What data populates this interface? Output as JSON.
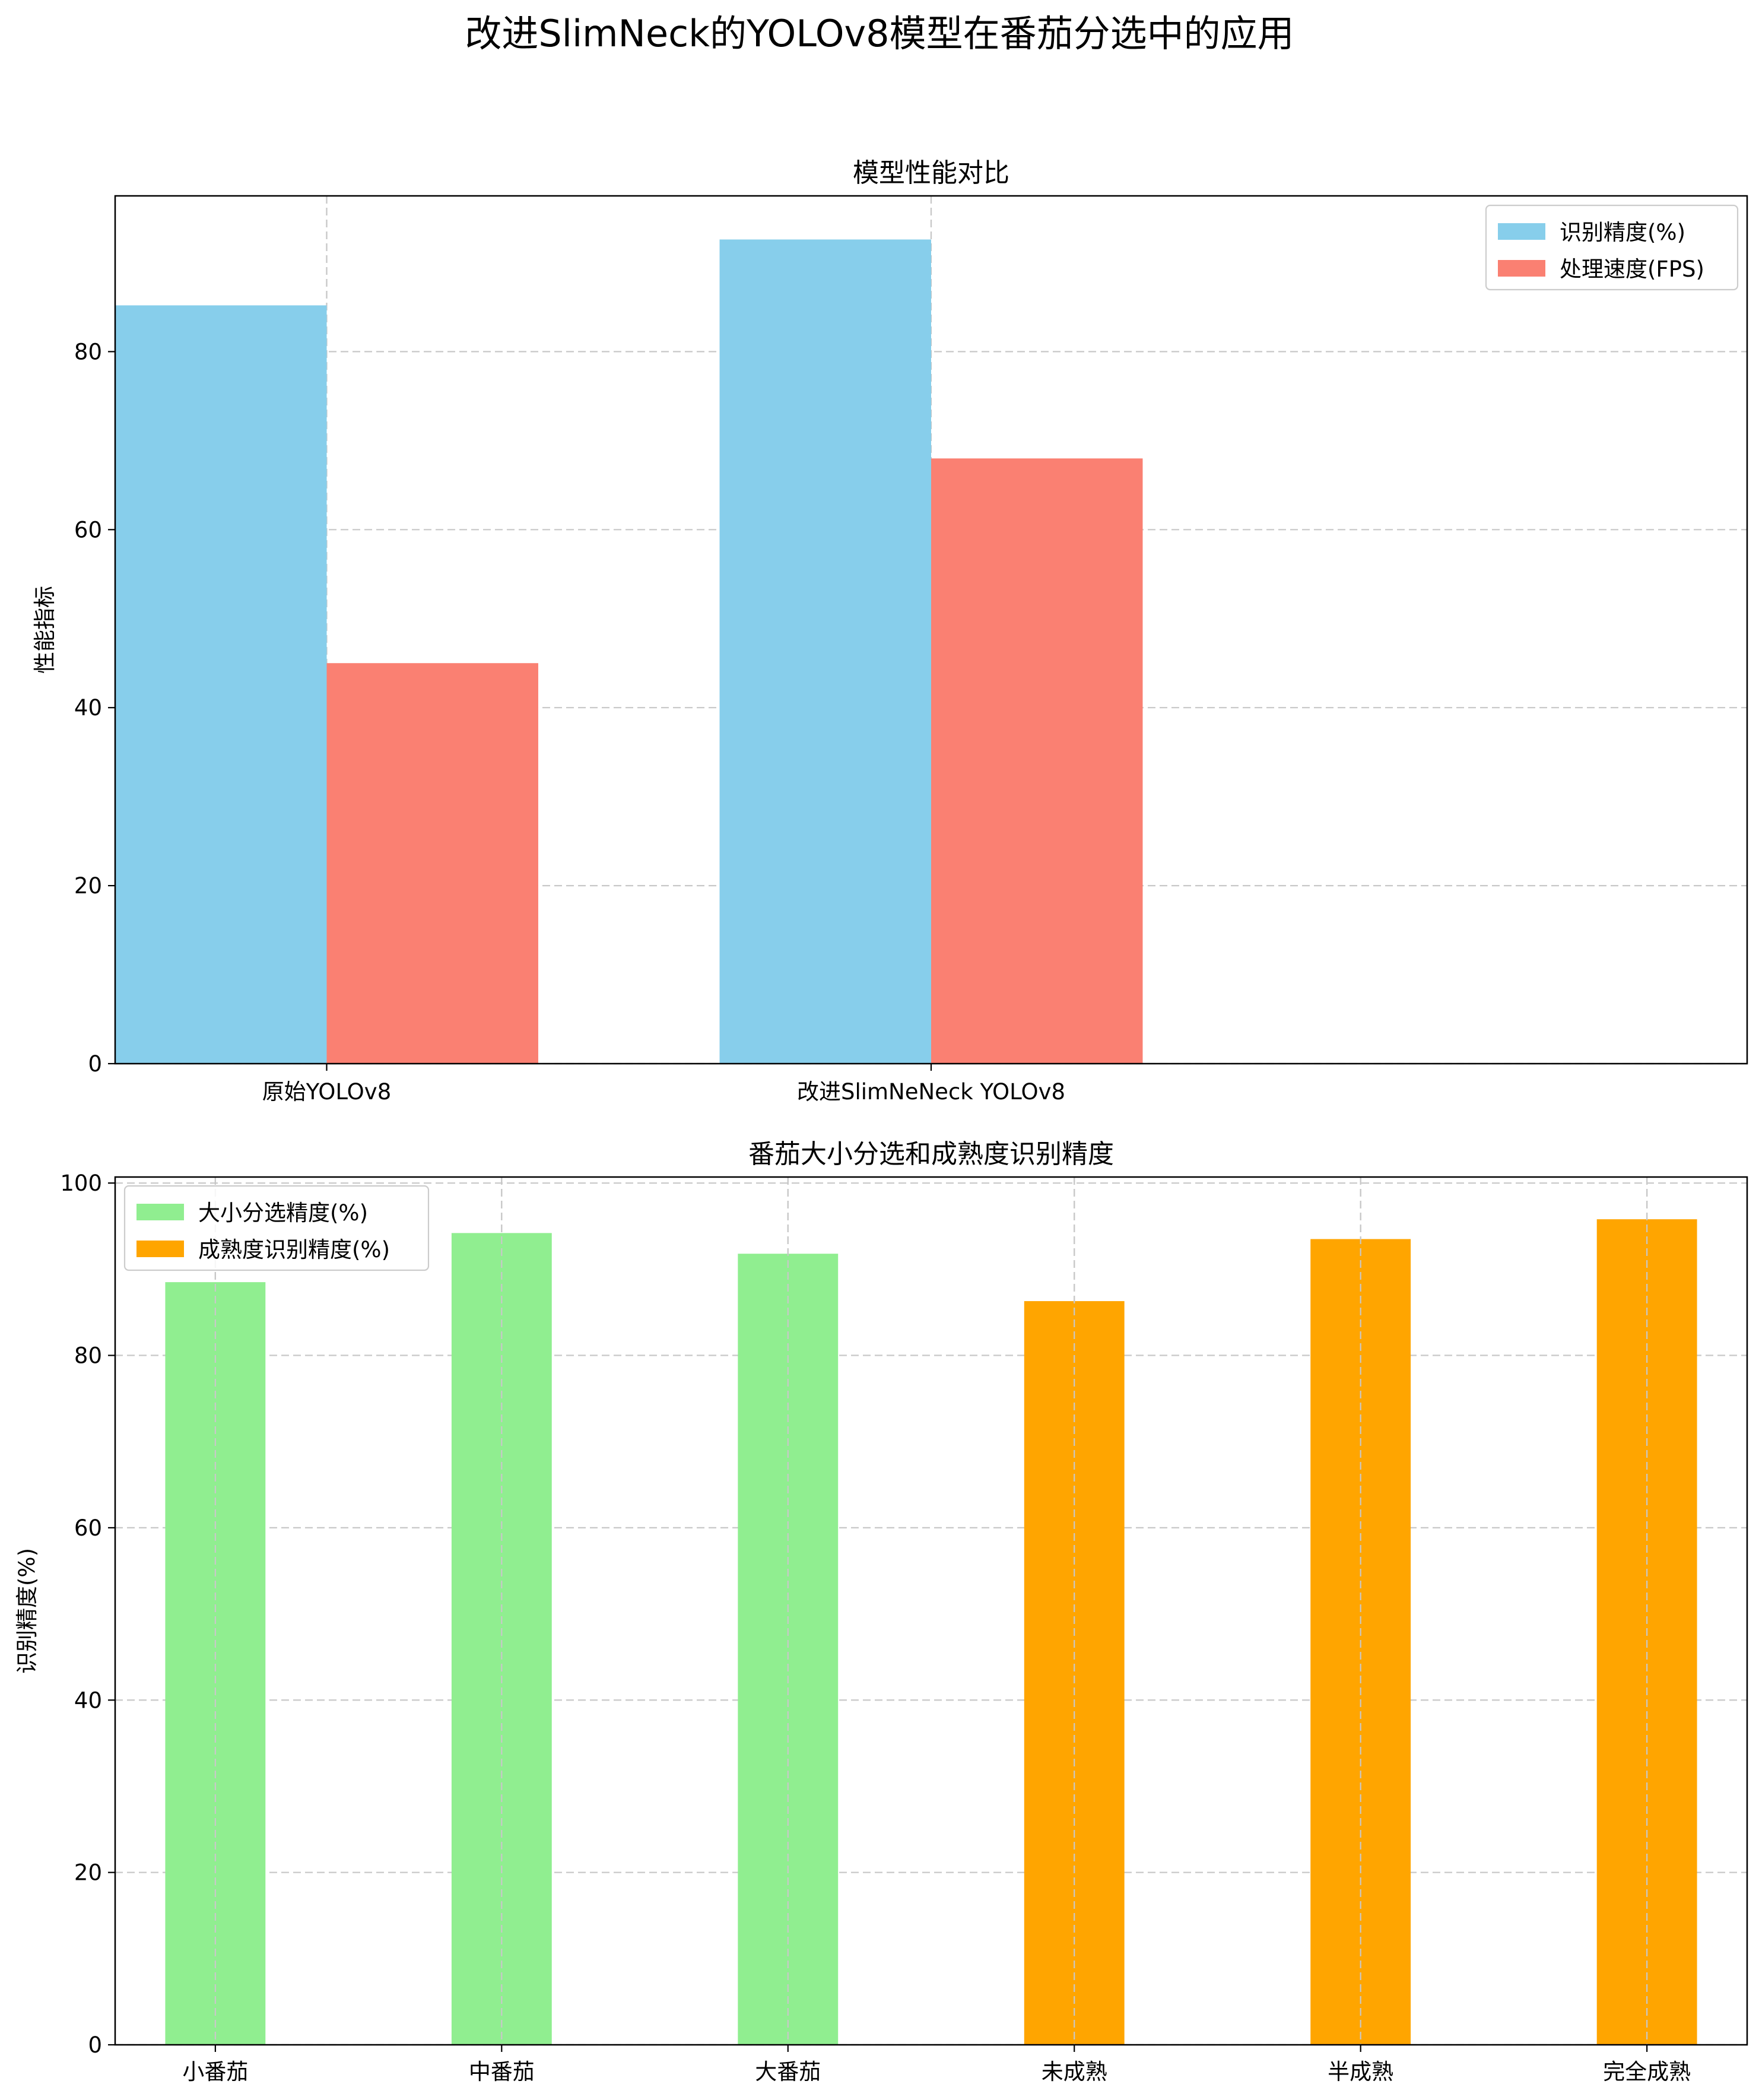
{
  "suptitle": "改进SlimNeck的YOLOv8模型在番茄分选中的应用",
  "chart_data": [
    {
      "type": "bar",
      "title": "模型性能对比",
      "xlabel": "",
      "ylabel": "性能指标",
      "ylim": [
        0,
        97.5
      ],
      "yticks": [
        0,
        20,
        40,
        60,
        80
      ],
      "grid": true,
      "legend_position": "top-right",
      "categories": [
        "原始YOLOv8",
        "改进SlimNeNeck YOLOv8"
      ],
      "series": [
        {
          "name": "识别精度(%)",
          "color": "#87CEEB",
          "values": [
            85.2,
            92.6
          ]
        },
        {
          "name": "处理速度(FPS)",
          "color": "#FA8072",
          "values": [
            45,
            68
          ]
        }
      ]
    },
    {
      "type": "bar",
      "title": "番茄大小分选和成熟度识别精度",
      "xlabel": "",
      "ylabel": "识别精度(%)",
      "ylim": [
        0,
        100.7
      ],
      "yticks": [
        0,
        20,
        40,
        60,
        80,
        100
      ],
      "grid": true,
      "legend_position": "top-left",
      "categories": [
        "小番茄",
        "中番茄",
        "大番茄",
        "未成熟",
        "半成熟",
        "完全成熟"
      ],
      "values": [
        88.5,
        94.2,
        91.8,
        86.3,
        93.5,
        95.8
      ],
      "series": [
        {
          "name": "大小分选精度(%)",
          "color": "#90EE90",
          "categories": [
            "小番茄",
            "中番茄",
            "大番茄"
          ]
        },
        {
          "name": "成熟度识别精度(%)",
          "color": "#FFA500",
          "categories": [
            "未成熟",
            "半成熟",
            "完全成熟"
          ]
        }
      ]
    }
  ]
}
